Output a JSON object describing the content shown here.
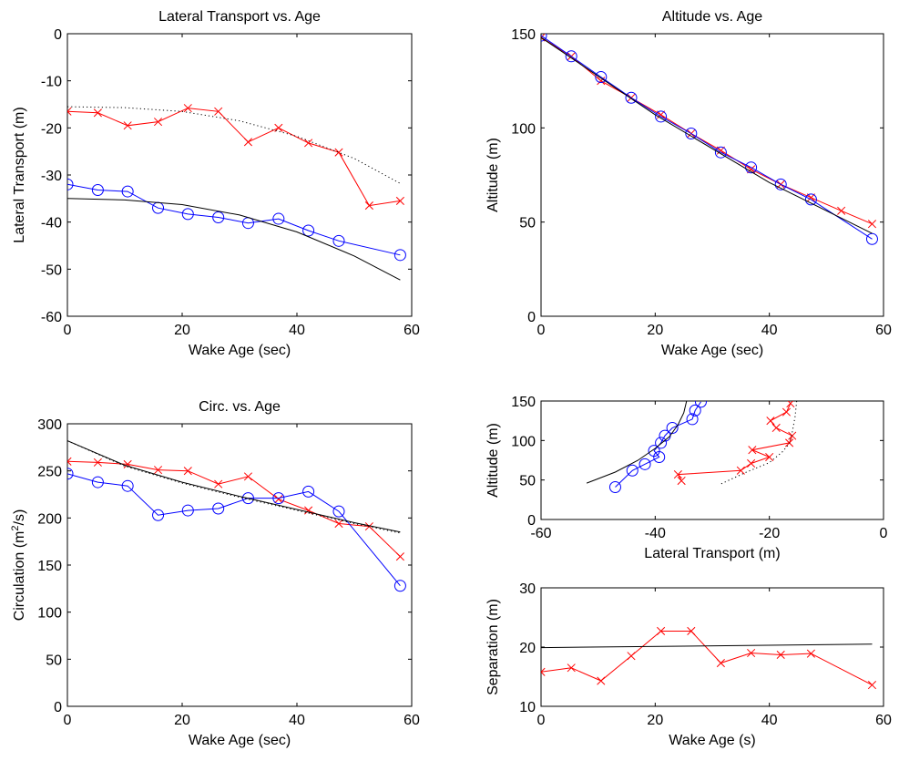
{
  "chart_data": [
    {
      "type": "line",
      "title": "Lateral Transport vs. Age",
      "xlabel": "Wake Age (sec)",
      "ylabel": "Lateral Transport (m)",
      "xlim": [
        0,
        60
      ],
      "ylim": [
        -60,
        0
      ],
      "xticks": [
        0,
        20,
        40,
        60
      ],
      "yticks": [
        -60,
        -50,
        -40,
        -30,
        -20,
        -10,
        0
      ],
      "tick_labels_x": [
        "0",
        "20",
        "40",
        "60"
      ],
      "tick_labels_y": [
        "-60",
        "-50",
        "-40",
        "-30",
        "-20",
        "-10",
        "0"
      ],
      "grid": false,
      "series": [
        {
          "color": "#ff0000",
          "marker": "x",
          "style": "solid",
          "x": [
            0,
            5.3,
            10.5,
            15.8,
            21,
            26.3,
            31.5,
            36.8,
            42,
            47.3,
            52.6,
            58
          ],
          "y": [
            -16.5,
            -16.8,
            -19.5,
            -18.7,
            -15.8,
            -16.5,
            -23,
            -20,
            -23.2,
            -25.2,
            -36.5,
            -35.5
          ]
        },
        {
          "color": "#0000ff",
          "marker": "o",
          "style": "solid",
          "x": [
            0,
            5.3,
            10.5,
            15.8,
            21,
            26.3,
            31.5,
            36.8,
            42,
            47.3,
            58
          ],
          "y": [
            -32,
            -33.2,
            -33.5,
            -37,
            -38.3,
            -39,
            -40.2,
            -39.3,
            -41.8,
            -44,
            -47
          ]
        },
        {
          "color": "#000000",
          "marker": "none",
          "style": "dotted",
          "x": [
            0,
            10,
            20,
            30,
            40,
            50,
            58
          ],
          "y": [
            -15.5,
            -15.7,
            -16.5,
            -18.5,
            -21.8,
            -26.5,
            -31.8
          ]
        },
        {
          "color": "#000000",
          "marker": "none",
          "style": "solid",
          "x": [
            0,
            10,
            20,
            30,
            40,
            50,
            58
          ],
          "y": [
            -35,
            -35.3,
            -36.3,
            -38.5,
            -42.1,
            -47.2,
            -52.3
          ]
        }
      ]
    },
    {
      "type": "line",
      "title": "Altitude vs. Age",
      "xlabel": "Wake Age (sec)",
      "ylabel": "Altitude (m)",
      "xlim": [
        0,
        60
      ],
      "ylim": [
        0,
        150
      ],
      "xticks": [
        0,
        20,
        40,
        60
      ],
      "yticks": [
        0,
        50,
        100,
        150
      ],
      "tick_labels_x": [
        "0",
        "20",
        "40",
        "60"
      ],
      "tick_labels_y": [
        "0",
        "50",
        "100",
        "150"
      ],
      "grid": false,
      "series": [
        {
          "color": "#ff0000",
          "marker": "x",
          "style": "solid",
          "x": [
            0,
            5.3,
            10.5,
            15.8,
            21,
            26.3,
            31.5,
            36.8,
            42,
            47.3,
            52.6,
            58
          ],
          "y": [
            148,
            138,
            125,
            116,
            107,
            97,
            88,
            78,
            70,
            63,
            56,
            49
          ]
        },
        {
          "color": "#0000ff",
          "marker": "o",
          "style": "solid",
          "x": [
            0,
            5.3,
            10.5,
            15.8,
            21,
            26.3,
            31.5,
            36.8,
            42,
            47.3,
            58
          ],
          "y": [
            149,
            138,
            127,
            116,
            106,
            97,
            87,
            79,
            70,
            62,
            41
          ]
        },
        {
          "color": "#000000",
          "marker": "none",
          "style": "solid",
          "x": [
            0,
            20,
            40,
            58
          ],
          "y": [
            148,
            107,
            71,
            44
          ]
        }
      ]
    },
    {
      "type": "line",
      "title": "Circ. vs. Age",
      "xlabel": "Wake Age (sec)",
      "ylabel_main": "Circulation (m",
      "ylabel_sup": "2",
      "ylabel_tail": "/s)",
      "xlim": [
        0,
        60
      ],
      "ylim": [
        0,
        300
      ],
      "xticks": [
        0,
        20,
        40,
        60
      ],
      "yticks": [
        0,
        50,
        100,
        150,
        200,
        250,
        300
      ],
      "tick_labels_x": [
        "0",
        "20",
        "40",
        "60"
      ],
      "tick_labels_y": [
        "0",
        "50",
        "100",
        "150",
        "200",
        "250",
        "300"
      ],
      "grid": false,
      "series": [
        {
          "color": "#ff0000",
          "marker": "x",
          "style": "solid",
          "x": [
            0,
            5.3,
            10.5,
            15.8,
            21,
            26.3,
            31.5,
            36.8,
            42,
            47.3,
            52.6,
            58
          ],
          "y": [
            260,
            259,
            257,
            251,
            250,
            236,
            244,
            220,
            208,
            194,
            191,
            159
          ]
        },
        {
          "color": "#0000ff",
          "marker": "o",
          "style": "solid",
          "x": [
            0,
            5.3,
            10.5,
            15.8,
            21,
            26.3,
            31.5,
            36.8,
            42,
            47.3,
            58
          ],
          "y": [
            247,
            238,
            234,
            203,
            208,
            210,
            221,
            221,
            228,
            207,
            128
          ]
        },
        {
          "color": "#000000",
          "marker": "none",
          "style": "dotted",
          "x": [
            0,
            10,
            20,
            30,
            40,
            50,
            58
          ],
          "y": [
            282,
            255,
            237,
            222,
            208,
            194,
            184
          ]
        },
        {
          "color": "#000000",
          "marker": "none",
          "style": "solid",
          "x": [
            0,
            10,
            20,
            30,
            40,
            50,
            58
          ],
          "y": [
            282,
            256,
            238,
            223,
            209,
            195,
            185
          ]
        }
      ]
    },
    {
      "type": "line",
      "title": "",
      "xlabel": "Lateral Transport (m)",
      "ylabel": "Altitude (m)",
      "xlim": [
        -60,
        0
      ],
      "ylim": [
        0,
        150
      ],
      "xticks": [
        -60,
        -40,
        -20,
        0
      ],
      "yticks": [
        0,
        50,
        100,
        150
      ],
      "tick_labels_x": [
        "-60",
        "-40",
        "-20",
        "0"
      ],
      "tick_labels_y": [
        "0",
        "50",
        "100",
        "150"
      ],
      "grid": false,
      "series": [
        {
          "color": "#ff0000",
          "marker": "x",
          "style": "solid",
          "x": [
            -16.3,
            -17,
            -19.8,
            -18.8,
            -16,
            -16.5,
            -23,
            -20,
            -23.2,
            -25,
            -36,
            -35.4
          ],
          "y": [
            147,
            136,
            125,
            116,
            106,
            97,
            88,
            79,
            71,
            62,
            57,
            49
          ]
        },
        {
          "color": "#0000ff",
          "marker": "o",
          "style": "solid",
          "x": [
            -32,
            -33,
            -33.5,
            -37,
            -38.3,
            -39,
            -40.2,
            -39.3,
            -41.8,
            -44,
            -47
          ],
          "y": [
            149,
            138,
            127,
            116,
            106,
            97,
            87,
            79,
            70,
            62,
            41
          ]
        },
        {
          "color": "#000000",
          "marker": "none",
          "style": "dotted",
          "x": [
            -15.2,
            -15.5,
            -16,
            -16.5,
            -17.8,
            -20,
            -24,
            -28.5
          ],
          "y": [
            150,
            130,
            110,
            96,
            85,
            72,
            60,
            45
          ]
        },
        {
          "color": "#000000",
          "marker": "none",
          "style": "solid",
          "x": [
            -34.5,
            -35,
            -36,
            -37.5,
            -40,
            -43,
            -47,
            -52
          ],
          "y": [
            150,
            135,
            120,
            105,
            90,
            75,
            60,
            46
          ]
        }
      ]
    },
    {
      "type": "line",
      "title": "",
      "xlabel": "Wake Age (s)",
      "ylabel": "Separation (m)",
      "xlim": [
        0,
        60
      ],
      "ylim": [
        10,
        30
      ],
      "xticks": [
        0,
        20,
        40,
        60
      ],
      "yticks": [
        10,
        20,
        30
      ],
      "tick_labels_x": [
        "0",
        "20",
        "40",
        "60"
      ],
      "tick_labels_y": [
        "10",
        "20",
        "30"
      ],
      "grid": false,
      "series": [
        {
          "color": "#ff0000",
          "marker": "x",
          "style": "solid",
          "x": [
            0,
            5.3,
            10.5,
            15.8,
            21,
            26.3,
            31.5,
            36.8,
            42,
            47.3,
            58
          ],
          "y": [
            15.8,
            16.5,
            14.3,
            18.5,
            22.7,
            22.7,
            17.3,
            19,
            18.7,
            18.9,
            13.6
          ]
        },
        {
          "color": "#000000",
          "marker": "none",
          "style": "solid",
          "x": [
            0,
            58
          ],
          "y": [
            19.9,
            20.5
          ]
        }
      ]
    }
  ]
}
